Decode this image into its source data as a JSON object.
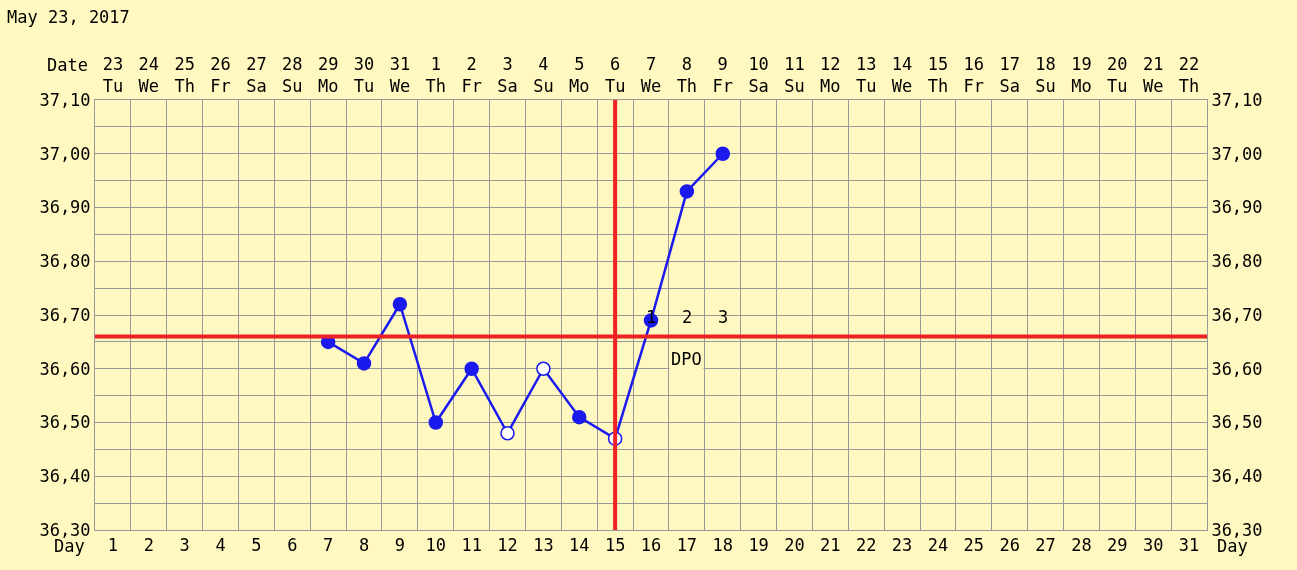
{
  "chart_data": {
    "type": "line",
    "title": "May 23, 2017",
    "xlabel": "Day",
    "x2label": "Date",
    "x": [
      7,
      8,
      9,
      10,
      11,
      12,
      13,
      14,
      15,
      16,
      17,
      18
    ],
    "series": [
      {
        "color": "#1a1aee",
        "values": [
          36.65,
          36.61,
          36.72,
          36.5,
          36.6,
          36.48,
          36.6,
          36.51,
          36.47,
          36.69,
          36.93,
          37.0
        ],
        "colors": [
          "#1a1aee",
          "#1a1aee",
          "#1a1aee",
          "#1a1aee",
          "#1a1aee",
          "#ffffff",
          "#ffffff",
          "#1a1aee",
          "#ffffff",
          "#1a1aee",
          "#1a1aee",
          "#1a1aee"
        ]
      }
    ],
    "marker": "circle",
    "line_style": "solid",
    "grid": true,
    "xlim": [
      0.5,
      31.5
    ],
    "xticks": [
      1,
      2,
      3,
      4,
      5,
      6,
      7,
      8,
      9,
      10,
      11,
      12,
      13,
      14,
      15,
      16,
      17,
      18,
      19,
      20,
      21,
      22,
      23,
      24,
      25,
      26,
      27,
      28,
      29,
      30,
      31
    ],
    "x2lim": [
      "2017-05-22T12:00",
      "2017-06-22T12:00"
    ],
    "x2ticks": [
      {
        "value": "2017-05-23",
        "label": "23\nTu"
      },
      {
        "value": "2017-05-24",
        "label": "24\nWe"
      },
      {
        "value": "2017-05-25",
        "label": "25\nTh"
      },
      {
        "value": "2017-05-26",
        "label": "26\nFr"
      },
      {
        "value": "2017-05-27",
        "label": "27\nSa"
      },
      {
        "value": "2017-05-28",
        "label": "28\nSu"
      },
      {
        "value": "2017-05-29",
        "label": "29\nMo"
      },
      {
        "value": "2017-05-30",
        "label": "30\nTu"
      },
      {
        "value": "2017-05-31",
        "label": "31\nWe"
      },
      {
        "value": "2017-06-01",
        "label": "1\nTh"
      },
      {
        "value": "2017-06-02",
        "label": "2\nFr"
      },
      {
        "value": "2017-06-03",
        "label": "3\nSa"
      },
      {
        "value": "2017-06-04",
        "label": "4\nSu"
      },
      {
        "value": "2017-06-05",
        "label": "5\nMo"
      },
      {
        "value": "2017-06-06",
        "label": "6\nTu"
      },
      {
        "value": "2017-06-07",
        "label": "7\nWe"
      },
      {
        "value": "2017-06-08",
        "label": "8\nTh"
      },
      {
        "value": "2017-06-09",
        "label": "9\nFr"
      },
      {
        "value": "2017-06-10",
        "label": "10\nSa"
      },
      {
        "value": "2017-06-11",
        "label": "11\nSu"
      },
      {
        "value": "2017-06-12",
        "label": "12\nMo"
      },
      {
        "value": "2017-06-13",
        "label": "13\nTu"
      },
      {
        "value": "2017-06-14",
        "label": "14\nWe"
      },
      {
        "value": "2017-06-15",
        "label": "15\nTh"
      },
      {
        "value": "2017-06-16",
        "label": "16\nFr"
      },
      {
        "value": "2017-06-17",
        "label": "17\nSa"
      },
      {
        "value": "2017-06-18",
        "label": "18\nSu"
      },
      {
        "value": "2017-06-19",
        "label": "19\nMo"
      },
      {
        "value": "2017-06-20",
        "label": "20\nTu"
      },
      {
        "value": "2017-06-21",
        "label": "21\nWe"
      },
      {
        "value": "2017-06-22",
        "label": "22\nTh"
      }
    ],
    "ylim": [
      36.3,
      37.1
    ],
    "yticks": [
      {
        "value": 36.3,
        "label": "36,30"
      },
      {
        "value": 36.4,
        "label": "36,40"
      },
      {
        "value": 36.5,
        "label": "36,50"
      },
      {
        "value": 36.6,
        "label": "36,60"
      },
      {
        "value": 36.7,
        "label": "36,70"
      },
      {
        "value": 36.8,
        "label": "36,80"
      },
      {
        "value": 36.9,
        "label": "36,90"
      },
      {
        "value": 37.0,
        "label": "37,00"
      },
      {
        "value": 37.1,
        "label": "37,10"
      }
    ],
    "y2lim": [
      36.3,
      37.1
    ],
    "y2ticks": [
      {
        "value": 36.3,
        "label": "36,30"
      },
      {
        "value": 36.4,
        "label": "36,40"
      },
      {
        "value": 36.5,
        "label": "36,50"
      },
      {
        "value": 36.6,
        "label": "36,60"
      },
      {
        "value": 36.7,
        "label": "36,70"
      },
      {
        "value": 36.8,
        "label": "36,80"
      },
      {
        "value": 36.9,
        "label": "36,90"
      },
      {
        "value": 37.0,
        "label": "37,00"
      },
      {
        "value": 37.1,
        "label": "37,10"
      }
    ],
    "ref_lines": [
      {
        "axis": "y",
        "value": 36.66,
        "color": "#ee2222"
      },
      {
        "axis": "x",
        "value": 15,
        "color": "#ee2222"
      }
    ],
    "annotations": [
      "1",
      "2",
      "3",
      "DPO"
    ]
  }
}
